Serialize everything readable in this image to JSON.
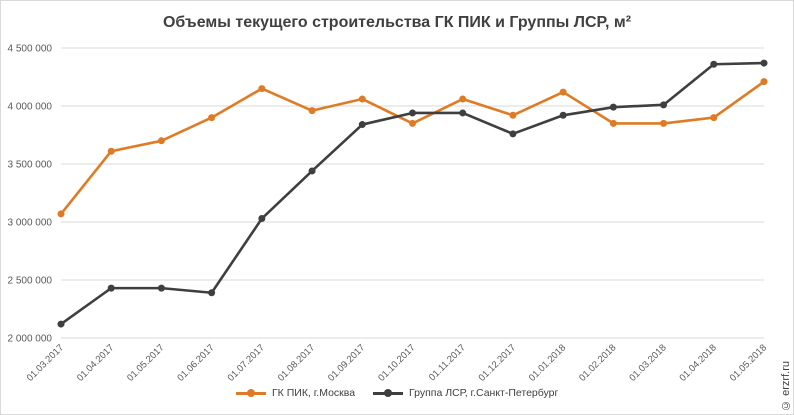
{
  "chart_data": {
    "type": "line",
    "title": "Объемы текущего строительства ГК ПИК и Группы ЛСР, м²",
    "categories": [
      "01.03.2017",
      "01.04.2017",
      "01.05.2017",
      "01.06.2017",
      "01.07.2017",
      "01.08.2017",
      "01.09.2017",
      "01.10.2017",
      "01.11.2017",
      "01.12.2017",
      "01.01.2018",
      "01.02.2018",
      "01.03.2018",
      "01.04.2018",
      "01.05.2018"
    ],
    "y_ticks": [
      "2 000 000",
      "2 500 000",
      "3 000 000",
      "3 500 000",
      "4 000 000",
      "4 500 000"
    ],
    "ylim": [
      2000000,
      4500000
    ],
    "grid": true,
    "legend_position": "bottom",
    "series": [
      {
        "name": "ГК ПИК, г.Москва",
        "color": "#e07b25",
        "values": [
          3070000,
          3610000,
          3700000,
          3900000,
          4150000,
          3960000,
          4060000,
          3850000,
          4060000,
          3920000,
          4120000,
          3850000,
          3850000,
          3900000,
          4210000
        ]
      },
      {
        "name": "Группа ЛСР, г.Санкт-Петербург",
        "color": "#3f3f3f",
        "values": [
          2120000,
          2430000,
          2430000,
          2390000,
          3030000,
          3440000,
          3840000,
          3940000,
          3940000,
          3760000,
          3920000,
          3990000,
          4010000,
          4360000,
          4370000
        ]
      }
    ]
  },
  "watermark": "© erzrf.ru"
}
